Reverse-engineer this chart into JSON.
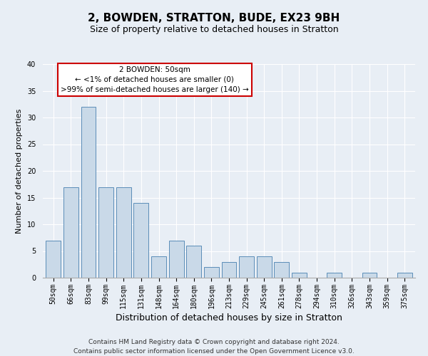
{
  "title": "2, BOWDEN, STRATTON, BUDE, EX23 9BH",
  "subtitle": "Size of property relative to detached houses in Stratton",
  "xlabel": "Distribution of detached houses by size in Stratton",
  "ylabel": "Number of detached properties",
  "categories": [
    "50sqm",
    "66sqm",
    "83sqm",
    "99sqm",
    "115sqm",
    "131sqm",
    "148sqm",
    "164sqm",
    "180sqm",
    "196sqm",
    "213sqm",
    "229sqm",
    "245sqm",
    "261sqm",
    "278sqm",
    "294sqm",
    "310sqm",
    "326sqm",
    "343sqm",
    "359sqm",
    "375sqm"
  ],
  "values": [
    7,
    17,
    32,
    17,
    17,
    14,
    4,
    7,
    6,
    2,
    3,
    4,
    4,
    3,
    1,
    0,
    1,
    0,
    1,
    0,
    1
  ],
  "bar_color": "#c9d9e8",
  "bar_edgecolor": "#5b8db8",
  "highlight_index": 0,
  "annotation_title": "2 BOWDEN: 50sqm",
  "annotation_line1": "← <1% of detached houses are smaller (0)",
  "annotation_line2": ">99% of semi-detached houses are larger (140) →",
  "annotation_box_color": "#ffffff",
  "annotation_box_edgecolor": "#cc0000",
  "ylim": [
    0,
    40
  ],
  "yticks": [
    0,
    5,
    10,
    15,
    20,
    25,
    30,
    35,
    40
  ],
  "bg_color": "#e8eef5",
  "plot_bg_color": "#e8eef5",
  "footer_line1": "Contains HM Land Registry data © Crown copyright and database right 2024.",
  "footer_line2": "Contains public sector information licensed under the Open Government Licence v3.0.",
  "title_fontsize": 11,
  "subtitle_fontsize": 9,
  "xlabel_fontsize": 9,
  "ylabel_fontsize": 8,
  "tick_fontsize": 7,
  "footer_fontsize": 6.5,
  "annotation_fontsize": 7.5
}
